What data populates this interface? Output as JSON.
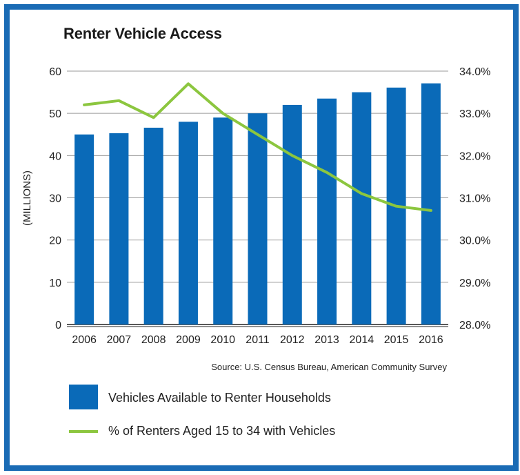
{
  "chart_data": {
    "type": "bar",
    "title": "Renter Vehicle Access",
    "ylabel": "(MILLIONS)",
    "categories": [
      "2006",
      "2007",
      "2008",
      "2009",
      "2010",
      "2011",
      "2012",
      "2013",
      "2014",
      "2015",
      "2016"
    ],
    "ylim": [
      0,
      60
    ],
    "yticks": [
      "0",
      "10",
      "20",
      "30",
      "40",
      "50",
      "60"
    ],
    "y2lim": [
      28.0,
      34.0
    ],
    "y2ticks": [
      "28.0%",
      "29.0%",
      "30.0%",
      "31.0%",
      "32.0%",
      "33.0%",
      "34.0%"
    ],
    "series": [
      {
        "name": "Vehicles Available to Renter Households",
        "type": "bar",
        "axis": "left",
        "color": "#0a6ab8",
        "values": [
          45.0,
          45.3,
          46.6,
          48.0,
          49.0,
          50.0,
          52.0,
          53.5,
          55.0,
          56.1,
          57.1
        ]
      },
      {
        "name": "% of Renters Aged 15 to 34 with Vehicles",
        "type": "line",
        "axis": "right",
        "color": "#8cc63f",
        "values": [
          33.2,
          33.3,
          32.9,
          33.7,
          33.0,
          32.5,
          32.0,
          31.6,
          31.1,
          30.8,
          30.7
        ]
      }
    ],
    "grid": true,
    "legend_position": "bottom",
    "source": "Source: U.S. Census Bureau, American Community Survey"
  }
}
